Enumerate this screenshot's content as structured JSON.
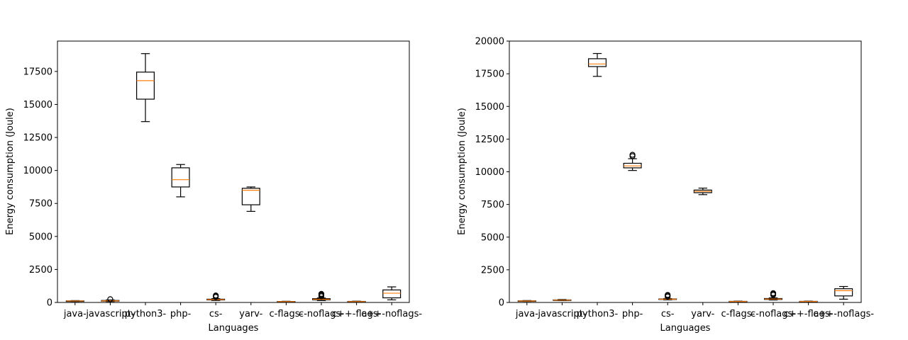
{
  "chart_data": [
    {
      "type": "box",
      "title": "",
      "xlabel": "Languages",
      "ylabel": "Energy consumption (Joule)",
      "ylim": [
        0,
        19800
      ],
      "yticks": [
        0,
        2500,
        5000,
        7500,
        10000,
        12500,
        15000,
        17500
      ],
      "categories": [
        "java-",
        "javascript-",
        "python3-",
        "php-",
        "cs-",
        "yarv-",
        "c-flags-",
        "c-noflags-",
        "c++-flags-",
        "c++-noflags-"
      ],
      "boxes": [
        {
          "whisker_low": 75,
          "q1": 95,
          "median": 110,
          "q3": 120,
          "whisker_high": 140,
          "outliers": []
        },
        {
          "whisker_low": 70,
          "q1": 100,
          "median": 120,
          "q3": 150,
          "whisker_high": 190,
          "outliers": [
            250
          ]
        },
        {
          "whisker_low": 13700,
          "q1": 15400,
          "median": 16800,
          "q3": 17450,
          "whisker_high": 18850,
          "outliers": []
        },
        {
          "whisker_low": 8000,
          "q1": 8750,
          "median": 9300,
          "q3": 10200,
          "whisker_high": 10450,
          "outliers": []
        },
        {
          "whisker_low": 150,
          "q1": 190,
          "median": 220,
          "q3": 250,
          "whisker_high": 290,
          "outliers": [
            420,
            480,
            530
          ]
        },
        {
          "whisker_low": 6900,
          "q1": 7400,
          "median": 8500,
          "q3": 8650,
          "whisker_high": 8750,
          "outliers": []
        },
        {
          "whisker_low": 40,
          "q1": 55,
          "median": 65,
          "q3": 75,
          "whisker_high": 90,
          "outliers": []
        },
        {
          "whisker_low": 150,
          "q1": 200,
          "median": 240,
          "q3": 290,
          "whisker_high": 340,
          "outliers": [
            470,
            540,
            600,
            650
          ]
        },
        {
          "whisker_low": 40,
          "q1": 55,
          "median": 65,
          "q3": 80,
          "whisker_high": 95,
          "outliers": []
        },
        {
          "whisker_low": 200,
          "q1": 350,
          "median": 700,
          "q3": 950,
          "whisker_high": 1180,
          "outliers": []
        }
      ]
    },
    {
      "type": "box",
      "title": "",
      "xlabel": "Languages",
      "ylabel": "Energy consumption (Joule)",
      "ylim": [
        0,
        20000
      ],
      "yticks": [
        0,
        2500,
        5000,
        7500,
        10000,
        12500,
        15000,
        17500,
        20000
      ],
      "categories": [
        "java-",
        "javascript-",
        "python3-",
        "php-",
        "cs-",
        "yarv-",
        "c-flags-",
        "c-noflags-",
        "c++-flags-",
        "c++-noflags-"
      ],
      "boxes": [
        {
          "whisker_low": 80,
          "q1": 100,
          "median": 110,
          "q3": 125,
          "whisker_high": 145,
          "outliers": []
        },
        {
          "whisker_low": 140,
          "q1": 165,
          "median": 180,
          "q3": 195,
          "whisker_high": 225,
          "outliers": []
        },
        {
          "whisker_low": 17300,
          "q1": 18050,
          "median": 18250,
          "q3": 18650,
          "whisker_high": 19050,
          "outliers": []
        },
        {
          "whisker_low": 10100,
          "q1": 10300,
          "median": 10450,
          "q3": 10650,
          "whisker_high": 11000,
          "outliers": [
            11200,
            11300
          ]
        },
        {
          "whisker_low": 200,
          "q1": 230,
          "median": 250,
          "q3": 270,
          "whisker_high": 300,
          "outliers": [
            450,
            520,
            580
          ]
        },
        {
          "whisker_low": 8250,
          "q1": 8400,
          "median": 8500,
          "q3": 8600,
          "whisker_high": 8750,
          "outliers": []
        },
        {
          "whisker_low": 50,
          "q1": 65,
          "median": 75,
          "q3": 85,
          "whisker_high": 100,
          "outliers": []
        },
        {
          "whisker_low": 190,
          "q1": 230,
          "median": 260,
          "q3": 300,
          "whisker_high": 350,
          "outliers": [
            580,
            650,
            710
          ]
        },
        {
          "whisker_low": 50,
          "q1": 65,
          "median": 75,
          "q3": 85,
          "whisker_high": 100,
          "outliers": []
        },
        {
          "whisker_low": 250,
          "q1": 500,
          "median": 900,
          "q3": 1050,
          "whisker_high": 1220,
          "outliers": []
        }
      ]
    }
  ]
}
